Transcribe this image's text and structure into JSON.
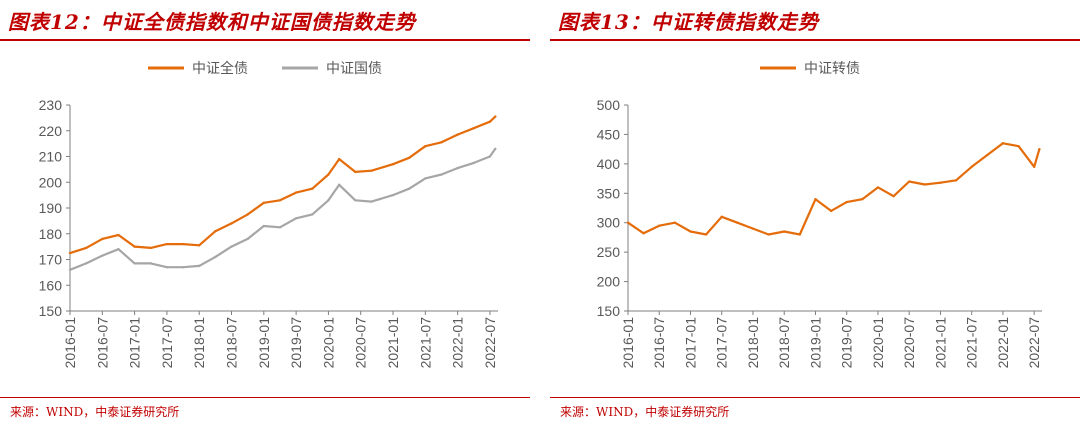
{
  "charts": [
    {
      "title": "图表12：中证全债指数和中证国债指数走势",
      "source": "来源：WIND，中泰证券研究所",
      "chart_data": {
        "type": "line",
        "x": [
          "2016-01",
          "2016-04",
          "2016-07",
          "2016-10",
          "2017-01",
          "2017-04",
          "2017-07",
          "2017-10",
          "2018-01",
          "2018-04",
          "2018-07",
          "2018-10",
          "2019-01",
          "2019-04",
          "2019-07",
          "2019-10",
          "2020-01",
          "2020-03",
          "2020-06",
          "2020-09",
          "2021-01",
          "2021-04",
          "2021-07",
          "2021-10",
          "2022-01",
          "2022-04",
          "2022-07",
          "2022-08"
        ],
        "xticks": [
          "2016-01",
          "2016-07",
          "2017-01",
          "2017-07",
          "2018-01",
          "2018-07",
          "2019-01",
          "2019-07",
          "2020-01",
          "2020-07",
          "2021-01",
          "2021-07",
          "2022-01",
          "2022-07"
        ],
        "ylim": [
          150,
          230
        ],
        "yticks": [
          150,
          160,
          170,
          180,
          190,
          200,
          210,
          220,
          230
        ],
        "legend_position": "top",
        "grid": false,
        "series": [
          {
            "name": "中证全债",
            "color": "#e46c0a",
            "values": [
              172.5,
              174.5,
              178.0,
              179.5,
              175.0,
              174.5,
              176.0,
              176.0,
              175.5,
              181.0,
              184.0,
              187.5,
              192.0,
              193.0,
              196.0,
              197.5,
              203.0,
              209.0,
              204.0,
              204.5,
              207.0,
              209.5,
              214.0,
              215.5,
              218.5,
              221.0,
              223.5,
              225.5
            ]
          },
          {
            "name": "中证国债",
            "color": "#a6a6a6",
            "values": [
              166.0,
              168.5,
              171.5,
              174.0,
              168.5,
              168.5,
              167.0,
              167.0,
              167.5,
              171.0,
              175.0,
              178.0,
              183.0,
              182.5,
              186.0,
              187.5,
              193.0,
              199.0,
              193.0,
              192.5,
              195.0,
              197.5,
              201.5,
              203.0,
              205.5,
              207.5,
              210.0,
              213.0
            ]
          }
        ]
      }
    },
    {
      "title": "图表13：中证转债指数走势",
      "source": "来源：WIND，中泰证券研究所",
      "chart_data": {
        "type": "line",
        "x": [
          "2016-01",
          "2016-04",
          "2016-07",
          "2016-10",
          "2017-01",
          "2017-04",
          "2017-07",
          "2017-10",
          "2018-01",
          "2018-04",
          "2018-07",
          "2018-10",
          "2019-01",
          "2019-04",
          "2019-07",
          "2019-10",
          "2020-01",
          "2020-04",
          "2020-07",
          "2020-10",
          "2021-01",
          "2021-04",
          "2021-07",
          "2021-10",
          "2022-01",
          "2022-04",
          "2022-07",
          "2022-08"
        ],
        "xticks": [
          "2016-01",
          "2016-07",
          "2017-01",
          "2017-07",
          "2018-01",
          "2018-07",
          "2019-01",
          "2019-07",
          "2020-01",
          "2020-07",
          "2021-01",
          "2021-07",
          "2022-01",
          "2022-07"
        ],
        "ylim": [
          150,
          500
        ],
        "yticks": [
          150,
          200,
          250,
          300,
          350,
          400,
          450,
          500
        ],
        "legend_position": "top",
        "grid": false,
        "series": [
          {
            "name": "中证转债",
            "color": "#e46c0a",
            "values": [
              300,
              282,
              295,
              300,
              285,
              280,
              310,
              300,
              290,
              280,
              285,
              280,
              340,
              320,
              335,
              340,
              360,
              345,
              370,
              365,
              368,
              372,
              395,
              415,
              435,
              430,
              395,
              425
            ]
          }
        ]
      }
    }
  ]
}
